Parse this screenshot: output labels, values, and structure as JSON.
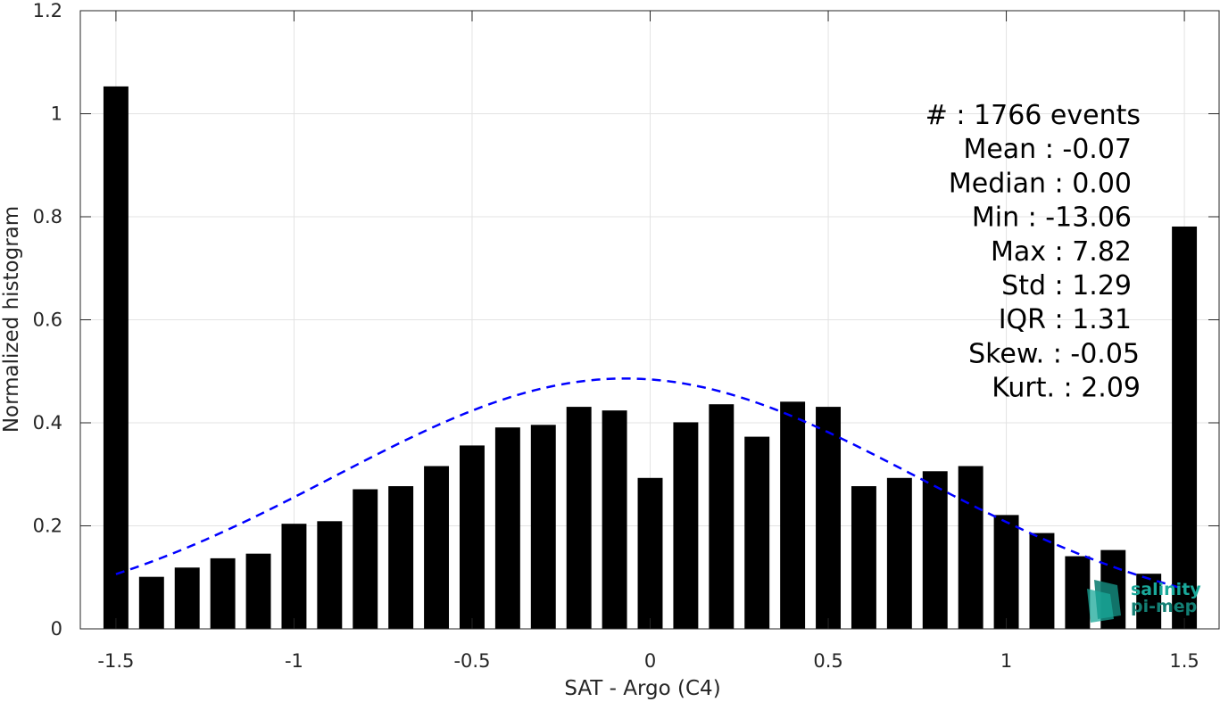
{
  "chart_data": {
    "type": "bar",
    "xlabel": "SAT - Argo (C4)",
    "ylabel": "Normalized histogram",
    "xlim": [
      -1.6,
      1.6
    ],
    "ylim": [
      0,
      1.2
    ],
    "xticks": [
      -1.5,
      -1,
      -0.5,
      0,
      0.5,
      1,
      1.5
    ],
    "xtick_labels": [
      "-1.5",
      "-1",
      "-0.5",
      "0",
      "0.5",
      "1",
      "1.5"
    ],
    "yticks": [
      0,
      0.2,
      0.4,
      0.6,
      0.8,
      1.0,
      1.2
    ],
    "ytick_labels": [
      "0",
      "0.2",
      "0.4",
      "0.6",
      "0.8",
      "1",
      "1.2"
    ],
    "grid": true,
    "bar_width": 0.07,
    "bar_color": "#000000",
    "x": [
      -1.5,
      -1.4,
      -1.3,
      -1.2,
      -1.1,
      -1.0,
      -0.9,
      -0.8,
      -0.7,
      -0.6,
      -0.5,
      -0.4,
      -0.3,
      -0.2,
      -0.1,
      0.0,
      0.1,
      0.2,
      0.3,
      0.4,
      0.5,
      0.6,
      0.7,
      0.8,
      0.9,
      1.0,
      1.1,
      1.2,
      1.3,
      1.4,
      1.5
    ],
    "values": [
      1.053,
      0.101,
      0.119,
      0.137,
      0.146,
      0.204,
      0.209,
      0.271,
      0.277,
      0.316,
      0.356,
      0.391,
      0.396,
      0.431,
      0.424,
      0.293,
      0.401,
      0.436,
      0.373,
      0.441,
      0.431,
      0.277,
      0.293,
      0.306,
      0.316,
      0.221,
      0.186,
      0.141,
      0.153,
      0.107,
      0.781
    ],
    "fit_curve": {
      "style": "dashed",
      "color": "#0000ff",
      "mean": -0.07,
      "std": 0.82,
      "peak": 0.486,
      "x_range": [
        -1.5,
        1.5
      ]
    },
    "stats": [
      "#  : 1766 events",
      "Mean : -0.07",
      "Median : 0.00",
      "Min : -13.06",
      "Max : 7.82",
      "Std : 1.29",
      "IQR : 1.31",
      "Skew. : -0.05",
      "Kurt. : 2.09"
    ]
  },
  "logo": {
    "line1": "salinity",
    "line2": "pi-mep",
    "color": "#1aa89a",
    "mark_color": "#137f74"
  }
}
